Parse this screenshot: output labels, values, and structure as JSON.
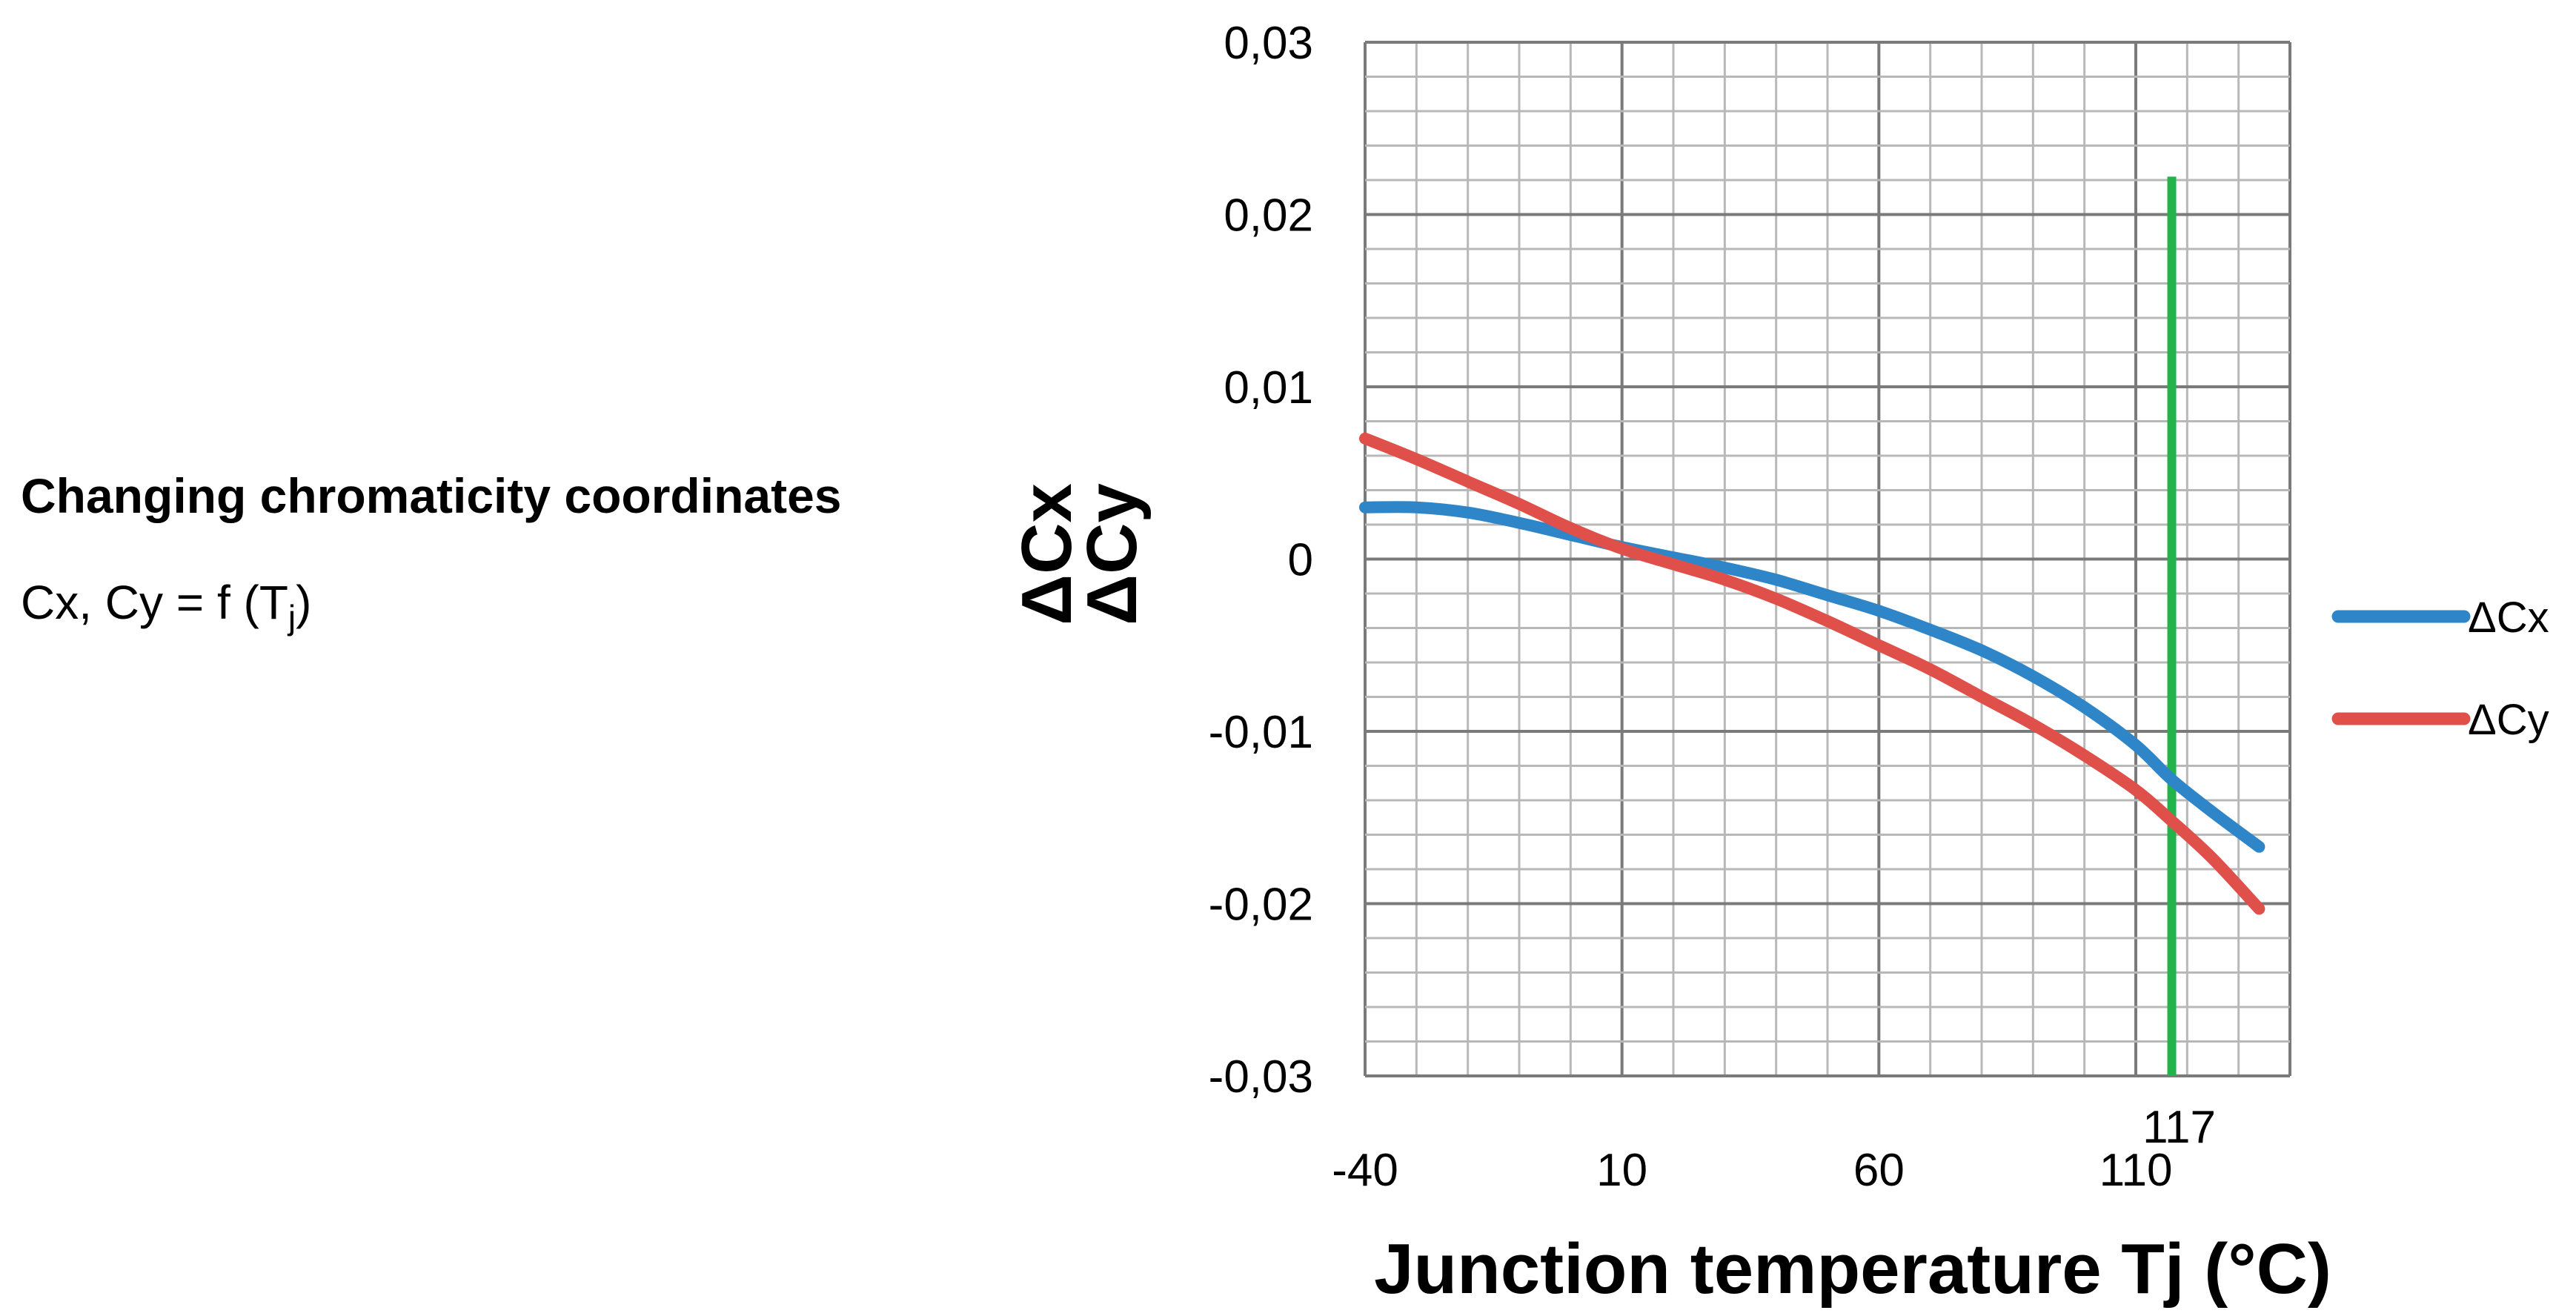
{
  "heading": {
    "title": "Changing chromaticity coordinates",
    "formula_main": "Cx, Cy = f (T",
    "formula_sub": "j",
    "formula_close": ")"
  },
  "chart_data": {
    "type": "line",
    "xlabel": "Junction temperature Tj (°C)",
    "ylabel_lines": [
      "ΔCx",
      "ΔCy"
    ],
    "xlim": [
      -40,
      140
    ],
    "ylim": [
      -0.03,
      0.03
    ],
    "x_ticks": [
      {
        "value": -40,
        "label": "-40"
      },
      {
        "value": 10,
        "label": "10"
      },
      {
        "value": 60,
        "label": "60"
      },
      {
        "value": 110,
        "label": "110"
      }
    ],
    "y_ticks": [
      {
        "value": 0.03,
        "label": "0,03"
      },
      {
        "value": 0.02,
        "label": "0,02"
      },
      {
        "value": 0.01,
        "label": "0,01"
      },
      {
        "value": 0,
        "label": "0"
      },
      {
        "value": -0.01,
        "label": "-0,01"
      },
      {
        "value": -0.02,
        "label": "-0,02"
      },
      {
        "value": -0.03,
        "label": "-0,03"
      }
    ],
    "grid": true,
    "grid_minor_x_step": 10,
    "grid_minor_y_step": 0.002,
    "legend_position": "right",
    "series": [
      {
        "name": "ΔCx",
        "color": "#2e86c8",
        "x": [
          -40,
          -30,
          -20,
          -10,
          0,
          10,
          20,
          30,
          40,
          50,
          60,
          70,
          80,
          90,
          100,
          110,
          117,
          125,
          134
        ],
        "y": [
          0.003,
          0.003,
          0.0027,
          0.0021,
          0.0014,
          0.0007,
          0.0001,
          -0.0005,
          -0.0012,
          -0.0021,
          -0.003,
          -0.0041,
          -0.0053,
          -0.0068,
          -0.0086,
          -0.0108,
          -0.0128,
          -0.0147,
          -0.0167
        ]
      },
      {
        "name": "ΔCy",
        "color": "#e0504a",
        "x": [
          -40,
          -30,
          -20,
          -10,
          0,
          10,
          20,
          30,
          40,
          50,
          60,
          70,
          80,
          90,
          100,
          110,
          117,
          125,
          134
        ],
        "y": [
          0.007,
          0.0058,
          0.0045,
          0.0032,
          0.0018,
          0.0006,
          -0.0003,
          -0.0012,
          -0.0023,
          -0.0036,
          -0.005,
          -0.0064,
          -0.008,
          -0.0096,
          -0.0114,
          -0.0134,
          -0.0152,
          -0.0174,
          -0.0203
        ]
      }
    ],
    "marker_line": {
      "x": 117,
      "y_top": 0.0222,
      "label": "117",
      "color": "#22b34a"
    }
  }
}
